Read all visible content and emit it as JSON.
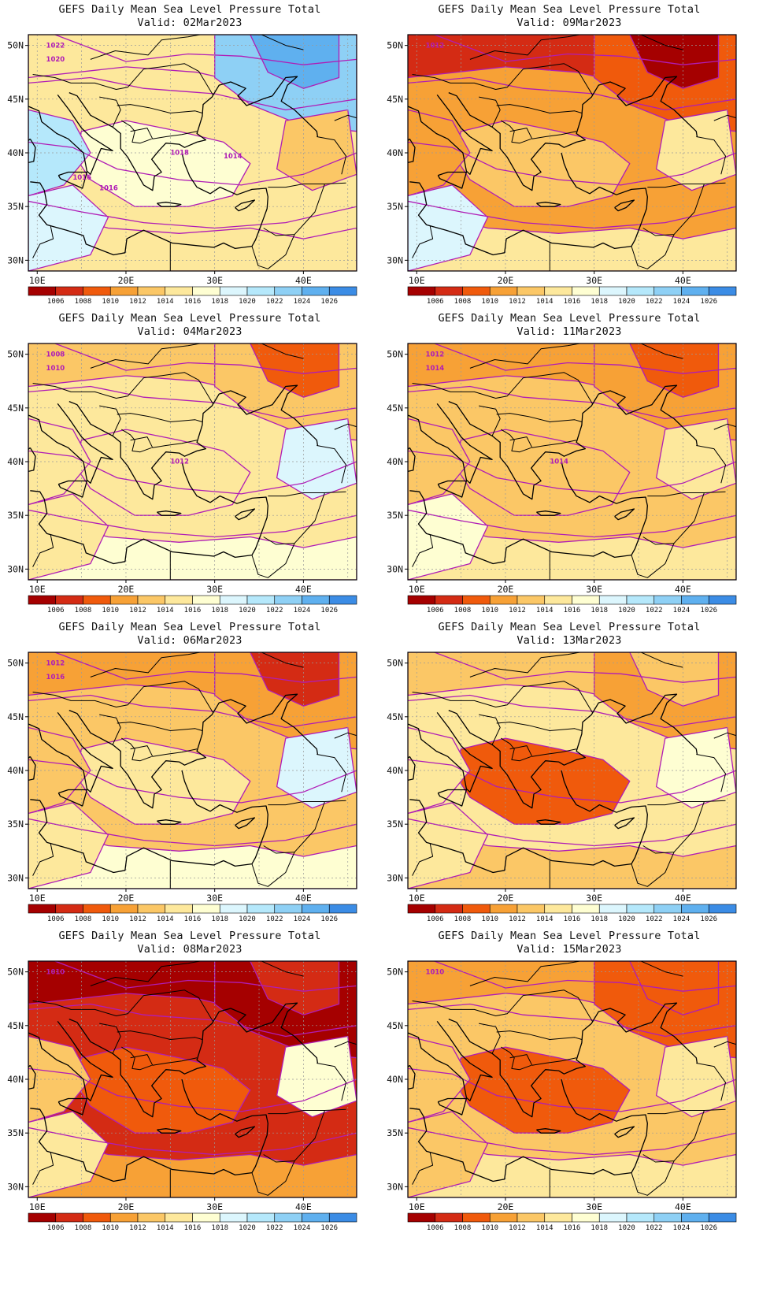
{
  "title_line1": "GEFS Daily Mean Sea Level Pressure Total",
  "valid_prefix": "Valid:",
  "lat_labels": [
    "50N",
    "45N",
    "40N",
    "35N",
    "30N"
  ],
  "lon_labels": [
    "10E",
    "20E",
    "30E",
    "40E"
  ],
  "colorbar": {
    "labels": [
      "1006",
      "1008",
      "1010",
      "1012",
      "1014",
      "1016",
      "1018",
      "1020",
      "1022",
      "1024",
      "1026"
    ],
    "colors": [
      "#a50000",
      "#d42b14",
      "#f05a0c",
      "#f7a136",
      "#fbc766",
      "#fde89c",
      "#fefed2",
      "#dcf6fd",
      "#b5e8fb",
      "#8ed0f5",
      "#5fb0ef",
      "#3b8ce5"
    ]
  },
  "contour_color": "#b01cb6",
  "panels": [
    {
      "valid": "02Mar2023",
      "fields": [
        "#fde89c",
        "#fde89c",
        "#fefed2",
        "#fde89c",
        "#b5e8fb",
        "#8ed0f5",
        "#5fb0ef",
        "#dcf6fd",
        "#fbc766"
      ],
      "labels": [
        "1022",
        "1020",
        "1018",
        "1016",
        "1014",
        "1016"
      ]
    },
    {
      "valid": "04Mar2023",
      "fields": [
        "#fde89c",
        "#fbc766",
        "#fde89c",
        "#fefed2",
        "#fde89c",
        "#fbc766",
        "#f05a0c",
        "#fde89c",
        "#dcf6fd"
      ],
      "labels": [
        "1008",
        "1010",
        "1012"
      ]
    },
    {
      "valid": "06Mar2023",
      "fields": [
        "#fbc766",
        "#f7a136",
        "#fde89c",
        "#fefed2",
        "#fbc766",
        "#f7a136",
        "#d42b14",
        "#fde89c",
        "#dcf6fd"
      ],
      "labels": [
        "1012",
        "1016"
      ]
    },
    {
      "valid": "08Mar2023",
      "fields": [
        "#d42b14",
        "#a50000",
        "#f05a0c",
        "#f7a136",
        "#fbc766",
        "#a50000",
        "#d42b14",
        "#fde89c",
        "#fefed2"
      ],
      "labels": [
        "1010"
      ]
    },
    {
      "valid": "09Mar2023",
      "fields": [
        "#f7a136",
        "#d42b14",
        "#fbc766",
        "#fde89c",
        "#f7a136",
        "#f05a0c",
        "#a50000",
        "#dcf6fd",
        "#fde89c"
      ],
      "labels": [
        "1012"
      ]
    },
    {
      "valid": "11Mar2023",
      "fields": [
        "#fbc766",
        "#f7a136",
        "#fbc766",
        "#fde89c",
        "#fbc766",
        "#f7a136",
        "#f05a0c",
        "#fefed2",
        "#fde89c"
      ],
      "labels": [
        "1012",
        "1014",
        "1014"
      ]
    },
    {
      "valid": "13Mar2023",
      "fields": [
        "#fde89c",
        "#fbc766",
        "#f05a0c",
        "#fbc766",
        "#fde89c",
        "#f7a136",
        "#fbc766",
        "#fde89c",
        "#fefed2"
      ],
      "labels": []
    },
    {
      "valid": "15Mar2023",
      "fields": [
        "#fbc766",
        "#f7a136",
        "#f05a0c",
        "#fde89c",
        "#fbc766",
        "#f05a0c",
        "#f05a0c",
        "#fbc766",
        "#fde89c"
      ],
      "labels": [
        "1010"
      ]
    }
  ]
}
